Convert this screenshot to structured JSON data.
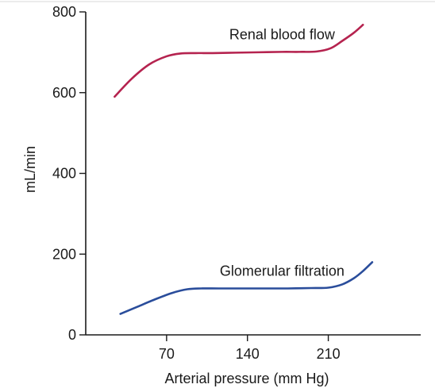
{
  "chart_data": {
    "type": "line",
    "xlabel": "Arterial pressure (mm Hg)",
    "ylabel": "mL/min",
    "xlim": [
      0,
      290
    ],
    "ylim": [
      0,
      800
    ],
    "x_ticks": [
      70,
      140,
      210
    ],
    "y_ticks": [
      0,
      200,
      400,
      600,
      800
    ],
    "grid": false,
    "series": [
      {
        "name": "Renal blood flow",
        "color": "#b5234f",
        "x": [
          25,
          40,
          55,
          70,
          82,
          95,
          110,
          130,
          150,
          170,
          185,
          200,
          212,
          222,
          232,
          240
        ],
        "y": [
          590,
          635,
          670,
          690,
          697,
          698,
          698,
          699,
          700,
          701,
          701,
          702,
          710,
          728,
          748,
          768
        ]
      },
      {
        "name": "Glomerular filtration",
        "color": "#2a4d9b",
        "x": [
          30,
          45,
          60,
          75,
          88,
          100,
          115,
          135,
          155,
          175,
          195,
          210,
          222,
          232,
          240,
          248
        ],
        "y": [
          52,
          70,
          88,
          104,
          113,
          115,
          115,
          115,
          115,
          115,
          116,
          117,
          125,
          140,
          158,
          180
        ]
      }
    ]
  }
}
